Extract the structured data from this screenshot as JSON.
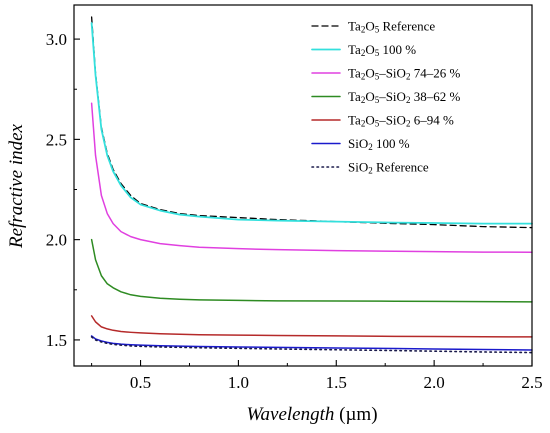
{
  "chart_data": {
    "type": "line",
    "xlabel": {
      "italic": "Wavelength",
      "unit": " (µm)"
    },
    "ylabel": "Refractive index",
    "xlim": [
      0.16,
      2.5
    ],
    "ylim": [
      1.37,
      3.17
    ],
    "xticks": [
      0.5,
      1.0,
      1.5,
      2.0,
      2.5
    ],
    "xtick_labels": [
      "0.5",
      "1.0",
      "1.5",
      "2.0",
      "2.5"
    ],
    "yticks": [
      1.5,
      2.0,
      2.5,
      3.0
    ],
    "ytick_labels": [
      "1.5",
      "2.0",
      "2.5",
      "3.0"
    ],
    "legend_position": "top-right",
    "series": [
      {
        "name": "Ta2O5 Reference",
        "legend": [
          [
            "Ta",
            ""
          ],
          [
            "2",
            "sub"
          ],
          [
            "O",
            ""
          ],
          [
            "5",
            "sub"
          ],
          [
            " Reference",
            ""
          ]
        ],
        "color": "#000000",
        "dash": "6,4",
        "width": 1.3,
        "x": [
          0.25,
          0.27,
          0.3,
          0.33,
          0.36,
          0.4,
          0.45,
          0.5,
          0.6,
          0.7,
          0.8,
          1.0,
          1.2,
          1.5,
          1.8,
          2.0,
          2.25,
          2.5
        ],
        "y": [
          3.11,
          2.83,
          2.56,
          2.43,
          2.35,
          2.28,
          2.22,
          2.18,
          2.15,
          2.13,
          2.12,
          2.11,
          2.1,
          2.09,
          2.08,
          2.075,
          2.065,
          2.06
        ]
      },
      {
        "name": "Ta2O5 100 %",
        "legend": [
          [
            "Ta",
            ""
          ],
          [
            "2",
            "sub"
          ],
          [
            "O",
            ""
          ],
          [
            "5",
            "sub"
          ],
          [
            " 100 %",
            ""
          ]
        ],
        "color": "#33e0dd",
        "dash": "",
        "width": 1.8,
        "x": [
          0.25,
          0.27,
          0.3,
          0.33,
          0.36,
          0.4,
          0.45,
          0.5,
          0.6,
          0.7,
          0.8,
          1.0,
          1.2,
          1.5,
          1.8,
          2.0,
          2.25,
          2.5
        ],
        "y": [
          3.08,
          2.82,
          2.55,
          2.42,
          2.34,
          2.27,
          2.21,
          2.175,
          2.145,
          2.125,
          2.115,
          2.1,
          2.095,
          2.09,
          2.085,
          2.083,
          2.08,
          2.08
        ]
      },
      {
        "name": "Ta2O5–SiO2 74–26 %",
        "legend": [
          [
            "Ta",
            ""
          ],
          [
            "2",
            "sub"
          ],
          [
            "O",
            ""
          ],
          [
            "5",
            "sub"
          ],
          [
            "–SiO",
            ""
          ],
          [
            "2",
            "sub"
          ],
          [
            " 74–26 %",
            ""
          ]
        ],
        "color": "#e040e0",
        "dash": "",
        "width": 1.5,
        "x": [
          0.25,
          0.27,
          0.3,
          0.33,
          0.36,
          0.4,
          0.45,
          0.5,
          0.6,
          0.7,
          0.8,
          1.0,
          1.2,
          1.5,
          1.8,
          2.0,
          2.25,
          2.5
        ],
        "y": [
          2.68,
          2.42,
          2.22,
          2.13,
          2.08,
          2.04,
          2.015,
          2.0,
          1.98,
          1.97,
          1.962,
          1.955,
          1.95,
          1.945,
          1.942,
          1.94,
          1.938,
          1.937
        ]
      },
      {
        "name": "Ta2O5–SiO2 38–62 %",
        "legend": [
          [
            "Ta",
            ""
          ],
          [
            "2",
            "sub"
          ],
          [
            "O",
            ""
          ],
          [
            "5",
            "sub"
          ],
          [
            "–SiO",
            ""
          ],
          [
            "2",
            "sub"
          ],
          [
            " 38–62 %",
            ""
          ]
        ],
        "color": "#2e8b22",
        "dash": "",
        "width": 1.5,
        "x": [
          0.25,
          0.27,
          0.3,
          0.33,
          0.36,
          0.4,
          0.45,
          0.5,
          0.6,
          0.7,
          0.8,
          1.0,
          1.2,
          1.5,
          1.8,
          2.0,
          2.25,
          2.5
        ],
        "y": [
          2.0,
          1.9,
          1.82,
          1.78,
          1.76,
          1.74,
          1.725,
          1.717,
          1.708,
          1.703,
          1.7,
          1.697,
          1.695,
          1.694,
          1.693,
          1.692,
          1.691,
          1.69
        ]
      },
      {
        "name": "Ta2O5–SiO2 6–94 %",
        "legend": [
          [
            "Ta",
            ""
          ],
          [
            "2",
            "sub"
          ],
          [
            "O",
            ""
          ],
          [
            "5",
            "sub"
          ],
          [
            "–SiO",
            ""
          ],
          [
            "2",
            "sub"
          ],
          [
            " 6–94 %",
            ""
          ]
        ],
        "color": "#b52a2a",
        "dash": "",
        "width": 1.5,
        "x": [
          0.25,
          0.27,
          0.3,
          0.33,
          0.36,
          0.4,
          0.45,
          0.5,
          0.6,
          0.7,
          0.8,
          1.0,
          1.2,
          1.5,
          1.8,
          2.0,
          2.25,
          2.5
        ],
        "y": [
          1.62,
          1.59,
          1.565,
          1.555,
          1.548,
          1.542,
          1.538,
          1.535,
          1.531,
          1.528,
          1.526,
          1.524,
          1.522,
          1.52,
          1.518,
          1.517,
          1.516,
          1.515
        ]
      },
      {
        "name": "SiO2 100 %",
        "legend": [
          [
            "SiO",
            ""
          ],
          [
            "2",
            "sub"
          ],
          [
            " 100 %",
            ""
          ]
        ],
        "color": "#1a1acc",
        "dash": "",
        "width": 1.5,
        "x": [
          0.25,
          0.27,
          0.3,
          0.33,
          0.36,
          0.4,
          0.45,
          0.5,
          0.6,
          0.7,
          0.8,
          1.0,
          1.2,
          1.5,
          1.8,
          2.0,
          2.25,
          2.5
        ],
        "y": [
          1.52,
          1.505,
          1.495,
          1.488,
          1.483,
          1.479,
          1.476,
          1.474,
          1.471,
          1.469,
          1.467,
          1.465,
          1.463,
          1.46,
          1.457,
          1.455,
          1.452,
          1.45
        ]
      },
      {
        "name": "SiO2 Reference",
        "legend": [
          [
            "SiO",
            ""
          ],
          [
            "2",
            "sub"
          ],
          [
            " Reference",
            ""
          ]
        ],
        "color": "#1a1a4a",
        "dash": "1.5,3.5",
        "width": 1.6,
        "x": [
          0.25,
          0.27,
          0.3,
          0.33,
          0.36,
          0.4,
          0.45,
          0.5,
          0.6,
          0.7,
          0.8,
          1.0,
          1.2,
          1.5,
          1.8,
          2.0,
          2.25,
          2.5
        ],
        "y": [
          1.515,
          1.5,
          1.49,
          1.483,
          1.478,
          1.474,
          1.47,
          1.468,
          1.465,
          1.463,
          1.461,
          1.458,
          1.455,
          1.451,
          1.447,
          1.444,
          1.44,
          1.437
        ]
      }
    ]
  }
}
